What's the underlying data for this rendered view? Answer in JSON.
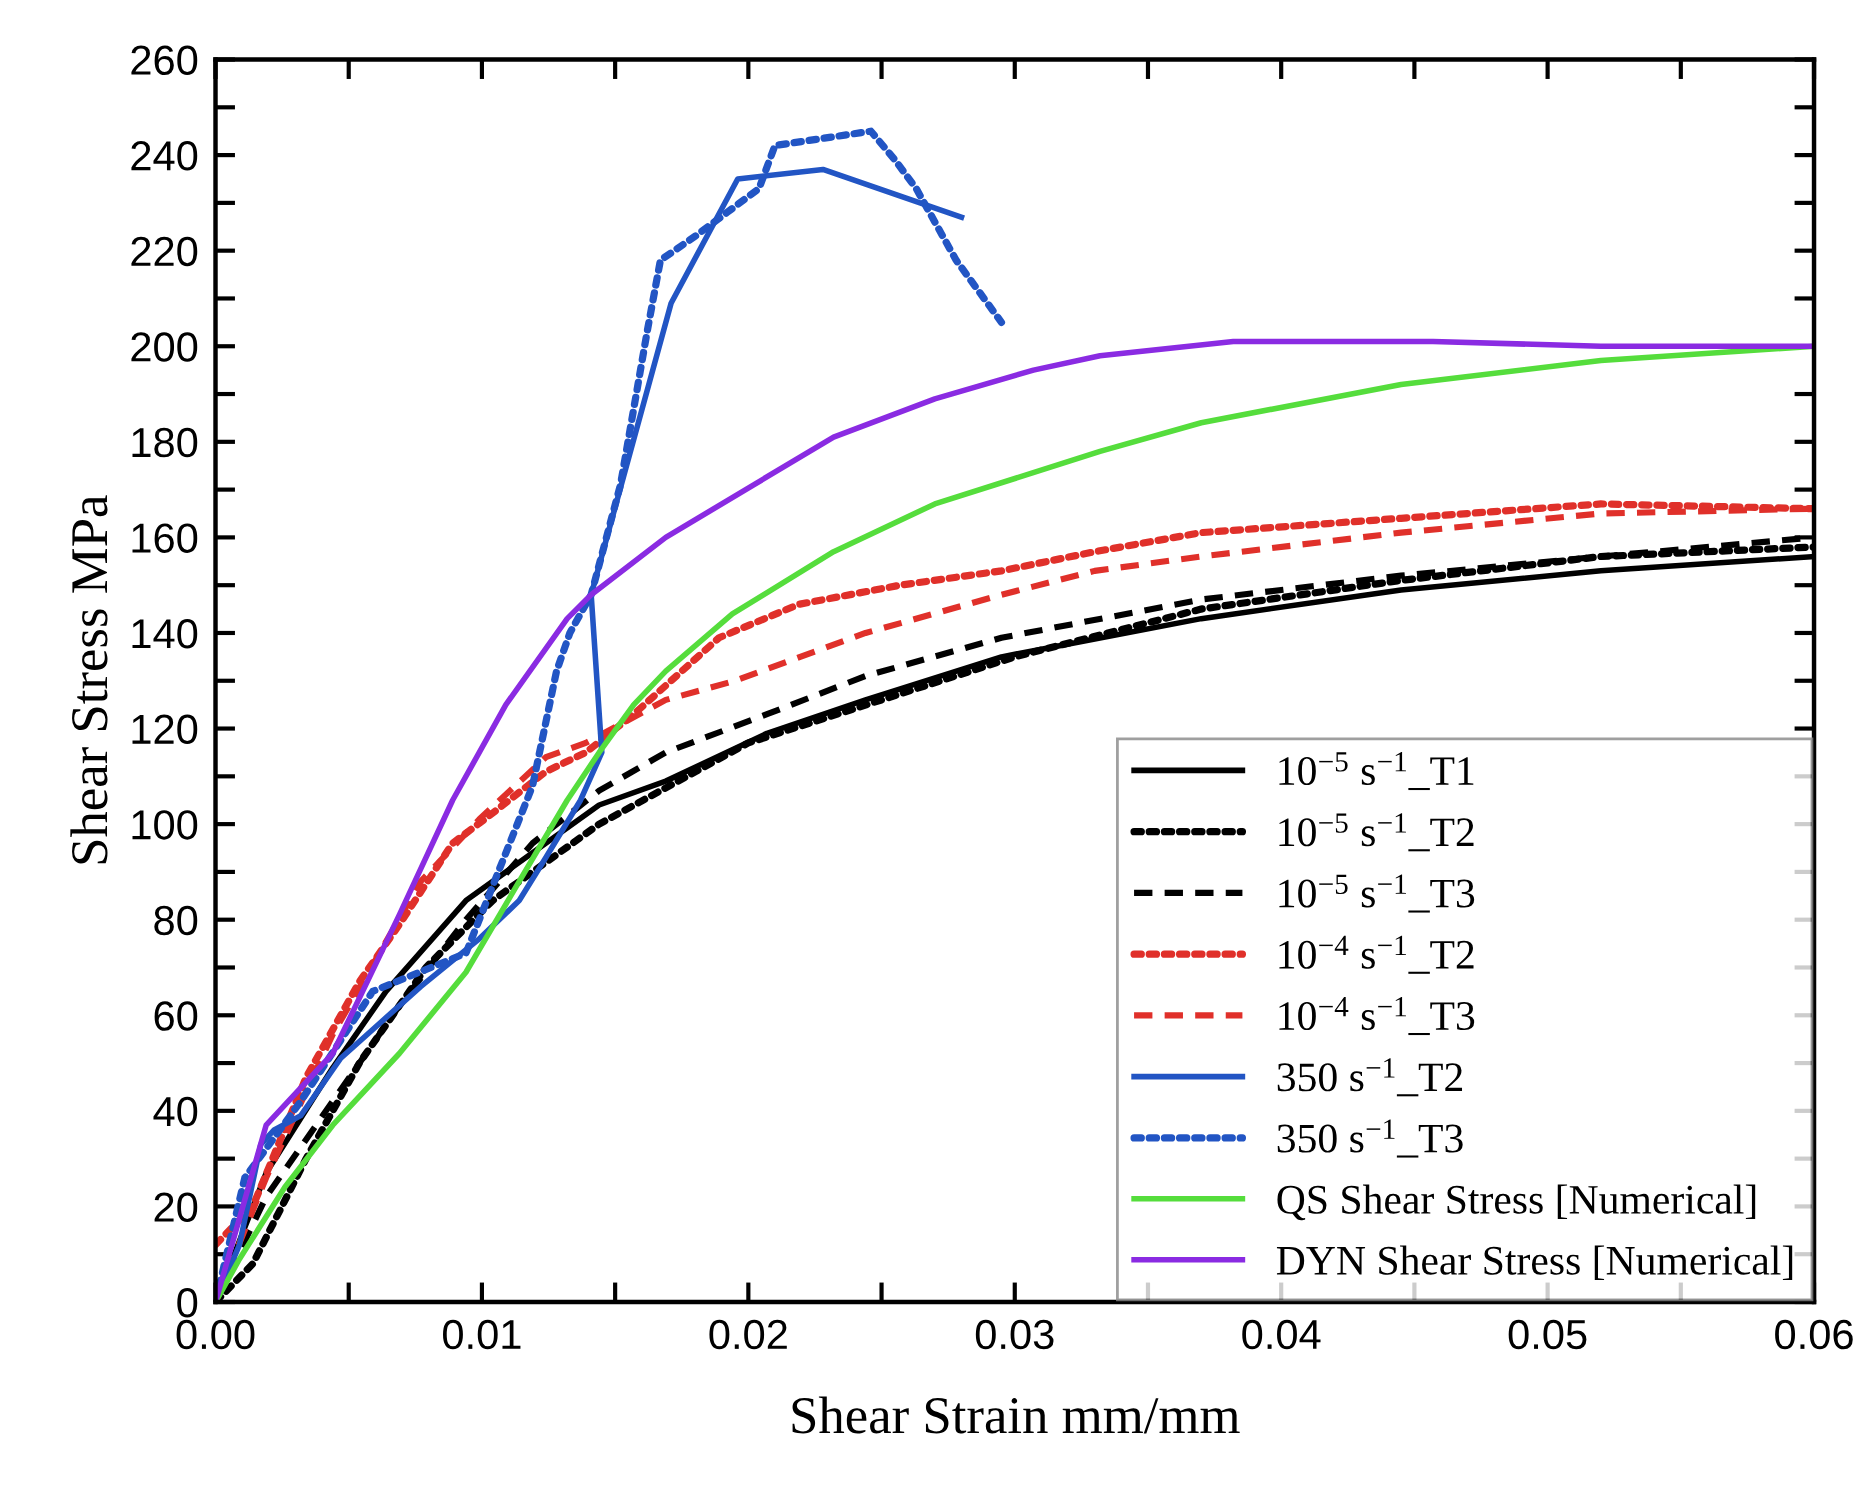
{
  "chart_data": {
    "type": "line",
    "xlabel": "Shear Strain mm/mm",
    "ylabel": "Shear Stress MPa",
    "xlim": [
      0,
      0.06
    ],
    "ylim": [
      0,
      260
    ],
    "xticks": [
      {
        "value": 0,
        "label": "0.00"
      },
      {
        "value": 0.005,
        "label": null
      },
      {
        "value": 0.01,
        "label": "0.01"
      },
      {
        "value": 0.015,
        "label": null
      },
      {
        "value": 0.02,
        "label": "0.02"
      },
      {
        "value": 0.025,
        "label": null
      },
      {
        "value": 0.03,
        "label": "0.03"
      },
      {
        "value": 0.035,
        "label": null
      },
      {
        "value": 0.04,
        "label": "0.04"
      },
      {
        "value": 0.045,
        "label": null
      },
      {
        "value": 0.05,
        "label": "0.05"
      },
      {
        "value": 0.055,
        "label": null
      },
      {
        "value": 0.06,
        "label": "0.06"
      }
    ],
    "yticks": [
      0,
      {
        "value": 10,
        "label": null
      },
      20,
      {
        "value": 30,
        "label": null
      },
      40,
      {
        "value": 50,
        "label": null
      },
      60,
      {
        "value": 70,
        "label": null
      },
      80,
      {
        "value": 90,
        "label": null
      },
      100,
      {
        "value": 110,
        "label": null
      },
      120,
      {
        "value": 130,
        "label": null
      },
      140,
      {
        "value": 150,
        "label": null
      },
      160,
      {
        "value": 170,
        "label": null
      },
      180,
      {
        "value": 190,
        "label": null
      },
      200,
      {
        "value": 210,
        "label": null
      },
      220,
      {
        "value": 230,
        "label": null
      },
      240,
      {
        "value": 250,
        "label": null
      },
      260
    ],
    "grid": false,
    "legend": "bottom right",
    "marker": "none",
    "series": [
      {
        "name": "10$^{−5}$ s$^{−1}$_T1",
        "color": "#000000",
        "line_style": "solid",
        "x": [
          0,
          0.0019,
          0.0044,
          0.0064,
          0.0094,
          0.0119,
          0.0144,
          0.0169,
          0.0207,
          0.0244,
          0.0295,
          0.037,
          0.0445,
          0.052,
          0.06
        ],
        "values": [
          0,
          27,
          49,
          65,
          84,
          94,
          104,
          109,
          119,
          126,
          135,
          143,
          149,
          153,
          156
        ]
      },
      {
        "name": "10$^{−5}$ s$^{−1}$_T2",
        "color": "#000000",
        "line_style": "dotted",
        "x": [
          0,
          0.0014,
          0.0034,
          0.0054,
          0.0079,
          0.0104,
          0.0144,
          0.02,
          0.03,
          0.037,
          0.0445,
          0.052,
          0.06
        ],
        "values": [
          0,
          8,
          30,
          50,
          70,
          84,
          100,
          117,
          135,
          145,
          151,
          156,
          158
        ]
      },
      {
        "name": "10$^{−5}$ s$^{−1}$_T3",
        "color": "#000000",
        "line_style": "dashed",
        "x": [
          0,
          0.0019,
          0.0044,
          0.0069,
          0.0094,
          0.0119,
          0.0144,
          0.0169,
          0.0207,
          0.0244,
          0.0295,
          0.037,
          0.0445,
          0.052,
          0.06
        ],
        "values": [
          0,
          22,
          42,
          62,
          80,
          96,
          107,
          115,
          123,
          131,
          139,
          147,
          152,
          156,
          160
        ]
      },
      {
        "name": "10$^{−4}$ s$^{−1}$_T2",
        "color": "#e0302a",
        "line_style": "dotted",
        "x": [
          0,
          0.0014,
          0.0034,
          0.0054,
          0.0069,
          0.0089,
          0.0101,
          0.0124,
          0.0139,
          0.0157,
          0.0189,
          0.0219,
          0.0257,
          0.0295,
          0.033,
          0.037,
          0.0445,
          0.052,
          0.06
        ],
        "values": [
          12,
          20,
          47,
          67,
          79,
          96,
          101,
          111,
          115,
          123,
          139,
          146,
          150,
          153,
          157,
          161,
          164,
          167,
          166
        ]
      },
      {
        "name": "10$^{−4}$ s$^{−1}$_T3",
        "color": "#e0302a",
        "line_style": "dashed",
        "x": [
          0,
          0.0019,
          0.0044,
          0.0077,
          0.0099,
          0.0124,
          0.0139,
          0.0169,
          0.0195,
          0.0244,
          0.0295,
          0.033,
          0.037,
          0.0445,
          0.052,
          0.06
        ],
        "values": [
          0,
          26,
          56,
          88,
          101,
          114,
          117,
          126,
          130,
          140,
          148,
          153,
          156,
          161,
          165,
          166
        ]
      },
      {
        "name": "350 s$^{−1}$_T2",
        "color": "#2255c4",
        "line_style": "solid",
        "x": [
          0,
          0.0009,
          0.0017,
          0.0022,
          0.0032,
          0.0047,
          0.0077,
          0.0099,
          0.0114,
          0.0124,
          0.0137,
          0.0145,
          0.0141,
          0.0171,
          0.0196,
          0.0228,
          0.028
        ],
        "values": [
          0,
          12,
          33,
          36,
          39,
          51,
          66,
          76,
          84,
          93,
          105,
          115,
          148,
          209,
          235,
          237,
          227
        ]
      },
      {
        "name": "350 s$^{−1}$_T3",
        "color": "#2255c4",
        "line_style": "dotted",
        "x": [
          0,
          0.0011,
          0.0032,
          0.0059,
          0.0094,
          0.0119,
          0.0128,
          0.0133,
          0.0141,
          0.0152,
          0.0157,
          0.0162,
          0.0167,
          0.018,
          0.0192,
          0.0204,
          0.021,
          0.0246,
          0.0255,
          0.0263,
          0.0278,
          0.0295
        ],
        "values": [
          0,
          26,
          42,
          65,
          73,
          108,
          132,
          140,
          148,
          171,
          187,
          203,
          218,
          223,
          228,
          233,
          242,
          245,
          239,
          233,
          218,
          205
        ]
      },
      {
        "name": "QS Shear Stress [Numerical]",
        "color": "#55dd3c",
        "line_style": "solid",
        "x": [
          0,
          0.0009,
          0.0026,
          0.0044,
          0.0069,
          0.0094,
          0.0114,
          0.0132,
          0.0144,
          0.0157,
          0.0169,
          0.0194,
          0.0232,
          0.027,
          0.0332,
          0.037,
          0.0445,
          0.052,
          0.06
        ],
        "values": [
          0,
          9,
          24,
          37,
          52,
          69,
          88,
          105,
          115,
          125,
          132,
          144,
          157,
          167,
          178,
          184,
          192,
          197,
          200
        ]
      },
      {
        "name": "DYN Shear Stress [Numerical]",
        "color": "#8a2be2",
        "line_style": "solid",
        "x": [
          0,
          0.0019,
          0.0044,
          0.0069,
          0.0089,
          0.0109,
          0.0132,
          0.0141,
          0.0169,
          0.0202,
          0.0232,
          0.027,
          0.0307,
          0.0332,
          0.0382,
          0.0457,
          0.052,
          0.06
        ],
        "values": [
          0,
          37,
          52,
          81,
          105,
          125,
          143,
          148,
          160,
          171,
          181,
          189,
          195,
          198,
          201,
          201,
          200,
          200
        ]
      }
    ]
  }
}
